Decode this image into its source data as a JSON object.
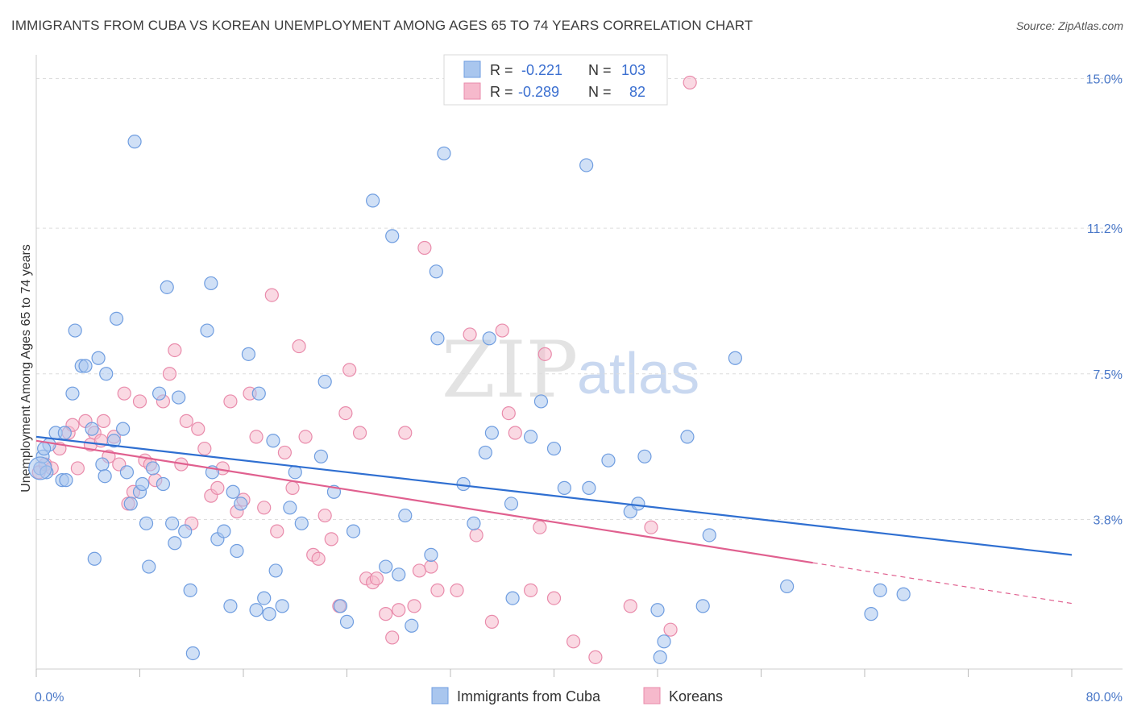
{
  "header": {
    "title": "IMMIGRANTS FROM CUBA VS KOREAN UNEMPLOYMENT AMONG AGES 65 TO 74 YEARS CORRELATION CHART",
    "source": "Source: ZipAtlas.com"
  },
  "watermark": {
    "zip": "ZIP",
    "atlas": "atlas"
  },
  "colors": {
    "blue_fill": "#a9c6ee",
    "blue_stroke": "#6f9de0",
    "blue_line": "#2f6fd1",
    "pink_fill": "#f6b9cc",
    "pink_stroke": "#e98bab",
    "pink_line": "#e0608f",
    "tick_text": "#4a78c8",
    "grid": "#dddddd"
  },
  "legend": {
    "rows": [
      {
        "r_label": "R =",
        "r_value": "-0.221",
        "n_label": "N =",
        "n_value": "103"
      },
      {
        "r_label": "R =",
        "r_value": "-0.289",
        "n_label": "N =",
        "n_value": "82"
      }
    ]
  },
  "chart_data": {
    "type": "scatter",
    "title": "IMMIGRANTS FROM CUBA VS KOREAN UNEMPLOYMENT AMONG AGES 65 TO 74 YEARS CORRELATION CHART",
    "xlabel": "",
    "ylabel": "Unemployment Among Ages 65 to 74 years",
    "xlim": [
      0,
      80
    ],
    "ylim": [
      0,
      15.4
    ],
    "x_tick_labels": [
      "0.0%",
      "80.0%"
    ],
    "y_tick_values": [
      3.8,
      7.5,
      11.2,
      15.0
    ],
    "y_tick_labels": [
      "3.8%",
      "7.5%",
      "11.2%",
      "15.0%"
    ],
    "grid": true,
    "legend_position": "top-center",
    "series": [
      {
        "name": "Immigrants from Cuba",
        "color": "#a9c6ee",
        "trend": {
          "x": [
            0,
            80
          ],
          "y": [
            5.9,
            2.9
          ]
        },
        "points": [
          [
            0.3,
            5.1
          ],
          [
            0.5,
            5.4
          ],
          [
            0.8,
            5.0
          ],
          [
            1.0,
            5.7
          ],
          [
            1.5,
            6.0
          ],
          [
            2.0,
            4.8
          ],
          [
            2.3,
            4.8
          ],
          [
            2.8,
            7.0
          ],
          [
            3.0,
            8.6
          ],
          [
            3.5,
            7.7
          ],
          [
            3.8,
            7.7
          ],
          [
            4.3,
            6.1
          ],
          [
            4.5,
            2.8
          ],
          [
            4.8,
            7.9
          ],
          [
            5.1,
            5.2
          ],
          [
            5.4,
            7.5
          ],
          [
            6.0,
            5.8
          ],
          [
            6.2,
            8.9
          ],
          [
            6.7,
            6.1
          ],
          [
            7.0,
            5.0
          ],
          [
            7.3,
            4.2
          ],
          [
            7.6,
            13.4
          ],
          [
            8.0,
            4.5
          ],
          [
            8.2,
            4.7
          ],
          [
            8.5,
            3.7
          ],
          [
            8.7,
            2.6
          ],
          [
            9.0,
            5.1
          ],
          [
            9.5,
            7.0
          ],
          [
            9.8,
            4.7
          ],
          [
            10.1,
            9.7
          ],
          [
            10.5,
            3.7
          ],
          [
            10.7,
            3.2
          ],
          [
            11.0,
            6.9
          ],
          [
            11.5,
            3.5
          ],
          [
            11.9,
            2.0
          ],
          [
            12.1,
            0.4
          ],
          [
            13.2,
            8.6
          ],
          [
            13.5,
            9.8
          ],
          [
            13.6,
            5.0
          ],
          [
            14.0,
            3.3
          ],
          [
            14.5,
            3.5
          ],
          [
            15.0,
            1.6
          ],
          [
            15.2,
            4.5
          ],
          [
            15.5,
            3.0
          ],
          [
            15.8,
            4.2
          ],
          [
            16.4,
            8.0
          ],
          [
            17.0,
            1.5
          ],
          [
            17.2,
            7.0
          ],
          [
            17.6,
            1.8
          ],
          [
            18.0,
            1.4
          ],
          [
            18.3,
            5.8
          ],
          [
            18.5,
            2.5
          ],
          [
            19.0,
            1.6
          ],
          [
            19.6,
            4.1
          ],
          [
            20.0,
            5.0
          ],
          [
            20.5,
            3.7
          ],
          [
            22.0,
            5.4
          ],
          [
            22.3,
            7.3
          ],
          [
            23.0,
            4.5
          ],
          [
            23.5,
            1.6
          ],
          [
            24.0,
            1.2
          ],
          [
            24.5,
            3.5
          ],
          [
            26.0,
            11.9
          ],
          [
            27.0,
            2.6
          ],
          [
            27.5,
            11.0
          ],
          [
            28.0,
            2.4
          ],
          [
            28.5,
            3.9
          ],
          [
            29.0,
            1.1
          ],
          [
            30.5,
            2.9
          ],
          [
            30.9,
            10.1
          ],
          [
            31.0,
            8.4
          ],
          [
            31.5,
            13.1
          ],
          [
            33.0,
            4.7
          ],
          [
            33.8,
            3.7
          ],
          [
            34.7,
            5.5
          ],
          [
            35.0,
            8.4
          ],
          [
            35.2,
            6.0
          ],
          [
            36.7,
            4.2
          ],
          [
            36.8,
            1.8
          ],
          [
            38.2,
            5.9
          ],
          [
            39.0,
            6.8
          ],
          [
            40.0,
            5.6
          ],
          [
            40.8,
            4.6
          ],
          [
            42.5,
            12.8
          ],
          [
            42.7,
            4.6
          ],
          [
            44.2,
            5.3
          ],
          [
            45.9,
            4.0
          ],
          [
            46.5,
            4.2
          ],
          [
            47.0,
            5.4
          ],
          [
            48.0,
            1.5
          ],
          [
            48.5,
            0.7
          ],
          [
            50.3,
            5.9
          ],
          [
            51.5,
            1.6
          ],
          [
            52.0,
            3.4
          ],
          [
            54.0,
            7.9
          ],
          [
            58.0,
            2.1
          ],
          [
            64.5,
            1.4
          ],
          [
            65.2,
            2.0
          ],
          [
            67.0,
            1.9
          ],
          [
            48.2,
            0.3
          ],
          [
            0.6,
            5.6
          ],
          [
            2.2,
            6.0
          ],
          [
            5.3,
            4.9
          ]
        ]
      },
      {
        "name": "Koreans",
        "color": "#f6b9cc",
        "trend": {
          "x": [
            0,
            60
          ],
          "y": [
            5.8,
            2.7
          ]
        },
        "points": [
          [
            0.2,
            5.0
          ],
          [
            0.7,
            5.2
          ],
          [
            1.2,
            5.1
          ],
          [
            1.8,
            5.6
          ],
          [
            2.5,
            6.0
          ],
          [
            2.8,
            6.2
          ],
          [
            3.2,
            5.1
          ],
          [
            3.8,
            6.3
          ],
          [
            4.2,
            5.7
          ],
          [
            4.5,
            6.0
          ],
          [
            5.0,
            5.8
          ],
          [
            5.2,
            6.3
          ],
          [
            5.6,
            5.4
          ],
          [
            6.0,
            5.9
          ],
          [
            6.4,
            5.2
          ],
          [
            6.8,
            7.0
          ],
          [
            7.1,
            4.2
          ],
          [
            7.5,
            4.5
          ],
          [
            8.0,
            6.8
          ],
          [
            8.4,
            5.3
          ],
          [
            8.8,
            5.2
          ],
          [
            9.2,
            4.8
          ],
          [
            9.8,
            6.8
          ],
          [
            10.3,
            7.5
          ],
          [
            10.7,
            8.1
          ],
          [
            11.2,
            5.2
          ],
          [
            11.6,
            6.3
          ],
          [
            12.0,
            3.7
          ],
          [
            12.5,
            6.1
          ],
          [
            13.0,
            5.6
          ],
          [
            13.5,
            4.4
          ],
          [
            14.0,
            4.6
          ],
          [
            14.4,
            5.1
          ],
          [
            15.0,
            6.8
          ],
          [
            15.5,
            4.0
          ],
          [
            16.0,
            4.3
          ],
          [
            16.5,
            7.0
          ],
          [
            17.0,
            5.9
          ],
          [
            17.6,
            4.1
          ],
          [
            18.2,
            9.5
          ],
          [
            18.6,
            3.5
          ],
          [
            19.2,
            5.5
          ],
          [
            19.8,
            4.6
          ],
          [
            20.3,
            8.2
          ],
          [
            20.8,
            5.9
          ],
          [
            21.4,
            2.9
          ],
          [
            21.8,
            2.8
          ],
          [
            22.3,
            3.9
          ],
          [
            22.8,
            3.3
          ],
          [
            23.4,
            1.6
          ],
          [
            23.9,
            6.5
          ],
          [
            24.2,
            7.6
          ],
          [
            25.0,
            6.0
          ],
          [
            25.5,
            2.3
          ],
          [
            26.0,
            2.2
          ],
          [
            26.3,
            2.3
          ],
          [
            27.0,
            1.4
          ],
          [
            27.5,
            0.8
          ],
          [
            28.0,
            1.5
          ],
          [
            28.5,
            6.0
          ],
          [
            29.2,
            1.6
          ],
          [
            29.6,
            2.5
          ],
          [
            30.0,
            10.7
          ],
          [
            30.5,
            2.6
          ],
          [
            31.0,
            2.0
          ],
          [
            32.5,
            2.0
          ],
          [
            33.5,
            8.5
          ],
          [
            34.0,
            3.4
          ],
          [
            35.2,
            1.2
          ],
          [
            36.0,
            8.6
          ],
          [
            36.5,
            6.5
          ],
          [
            37.0,
            6.0
          ],
          [
            38.2,
            2.0
          ],
          [
            38.9,
            3.6
          ],
          [
            39.3,
            8.0
          ],
          [
            40.0,
            1.8
          ],
          [
            41.5,
            0.7
          ],
          [
            43.2,
            0.3
          ],
          [
            45.9,
            1.6
          ],
          [
            47.5,
            3.6
          ],
          [
            49.0,
            1.0
          ],
          [
            50.5,
            14.9
          ]
        ]
      }
    ]
  },
  "bottom_legend": {
    "items": [
      "Immigrants from Cuba",
      "Koreans"
    ]
  }
}
